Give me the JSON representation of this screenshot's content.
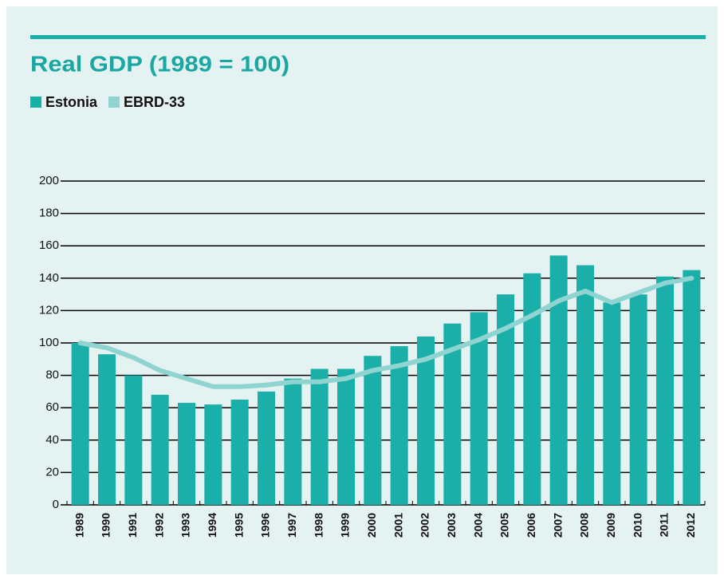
{
  "chart_data": {
    "type": "bar",
    "title": "Real GDP (1989 = 100)",
    "categories": [
      "1989",
      "1990",
      "1991",
      "1992",
      "1993",
      "1994",
      "1995",
      "1996",
      "1997",
      "1998",
      "1999",
      "2000",
      "2001",
      "2002",
      "2003",
      "2004",
      "2005",
      "2006",
      "2007",
      "2008",
      "2009",
      "2010",
      "2011",
      "2012"
    ],
    "series": [
      {
        "name": "Estonia",
        "color": "#1aafa9",
        "type": "bar",
        "values": [
          100,
          93,
          80,
          68,
          63,
          62,
          65,
          70,
          78,
          84,
          84,
          92,
          98,
          104,
          112,
          119,
          130,
          143,
          154,
          148,
          125,
          130,
          141,
          145
        ]
      },
      {
        "name": "EBRD-33",
        "color": "#8fd4d1",
        "type": "line",
        "values": [
          100,
          97,
          91,
          83,
          78,
          73,
          73,
          74,
          76,
          76,
          78,
          83,
          86,
          90,
          96,
          102,
          109,
          117,
          126,
          132,
          125,
          131,
          137,
          140
        ]
      }
    ],
    "ylim": [
      0,
      200
    ],
    "yticks": [
      0,
      20,
      40,
      60,
      80,
      100,
      120,
      140,
      160,
      180,
      200
    ],
    "grid": true
  }
}
